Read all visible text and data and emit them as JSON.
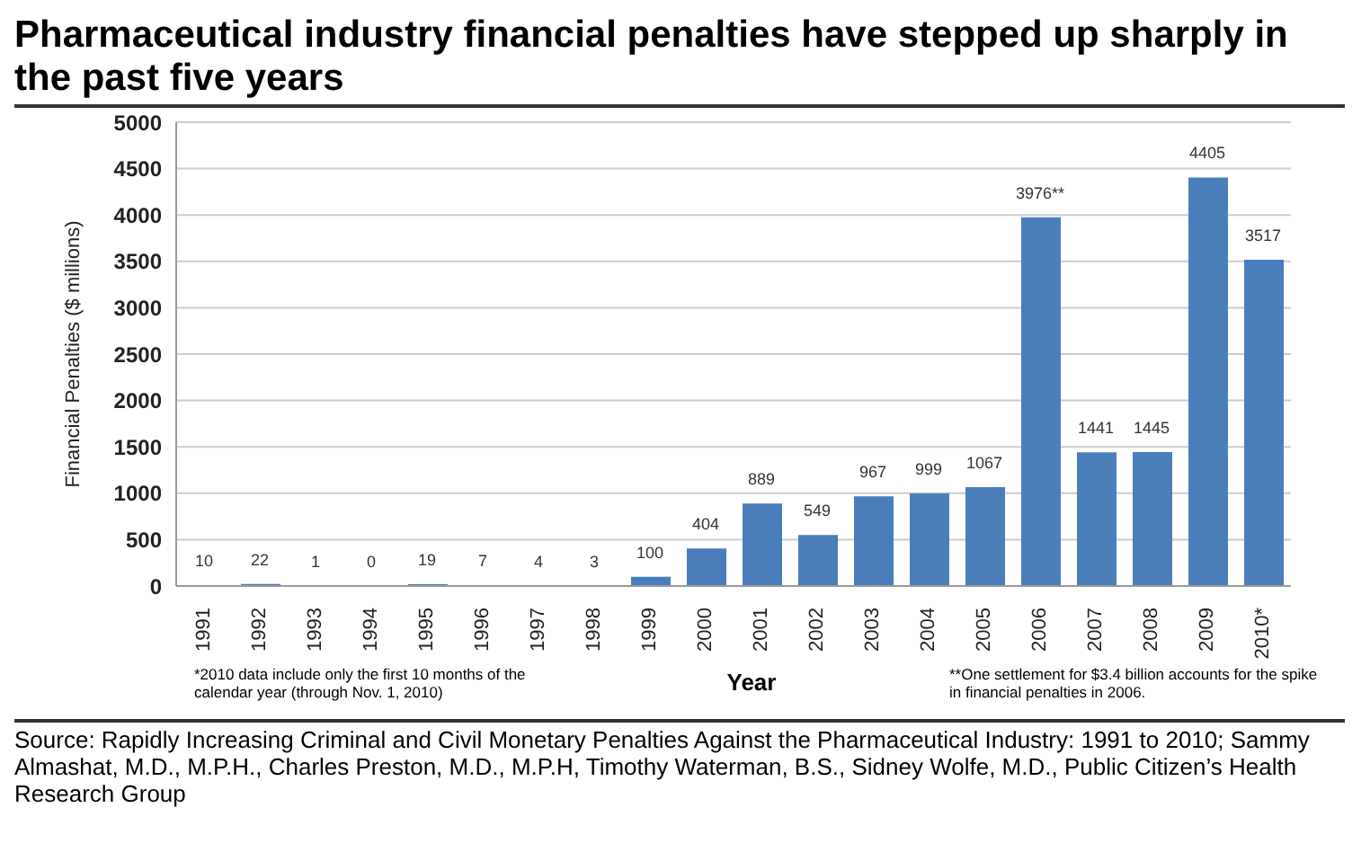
{
  "chart_data": {
    "type": "bar",
    "title": "Pharmaceutical industry financial penalties have stepped up sharply in the past five years",
    "xlabel": "Year",
    "ylabel": "Financial Penalties ($ millions)",
    "categories": [
      "1991",
      "1992",
      "1993",
      "1994",
      "1995",
      "1996",
      "1997",
      "1998",
      "1999",
      "2000",
      "2001",
      "2002",
      "2003",
      "2004",
      "2005",
      "2006",
      "2007",
      "2008",
      "2009",
      "2010*"
    ],
    "values": [
      10,
      22,
      1,
      0,
      19,
      7,
      4,
      3,
      100,
      404,
      889,
      549,
      967,
      999,
      1067,
      3976,
      1441,
      1445,
      4405,
      3517
    ],
    "value_labels": [
      "10",
      "22",
      "1",
      "0",
      "19",
      "7",
      "4",
      "3",
      "100",
      "404",
      "889",
      "549",
      "967",
      "999",
      "1067",
      "3976**",
      "1441",
      "1445",
      "4405",
      "3517"
    ],
    "color": "#4a7ebb",
    "ylim": [
      0,
      5000
    ],
    "yticks": [
      0,
      500,
      1000,
      1500,
      2000,
      2500,
      3000,
      3500,
      4000,
      4500,
      5000
    ],
    "grid": "y",
    "annotations": [
      "*2010 data include only the first 10 months of the calendar year (through Nov. 1, 2010)",
      "**One settlement for $3.4 billion accounts for the spike in financial penalties in 2006.",
      "Source: Rapidly Increasing Criminal and Civil Monetary Penalties Against the Pharmaceutical Industry: 1991 to 2010; Sammy Almashat, M.D., M.P.H., Charles Preston, M.D., M.P.H, Timothy Waterman, B.S., Sidney Wolfe, M.D., Public Citizen’s Health Research Group"
    ]
  }
}
